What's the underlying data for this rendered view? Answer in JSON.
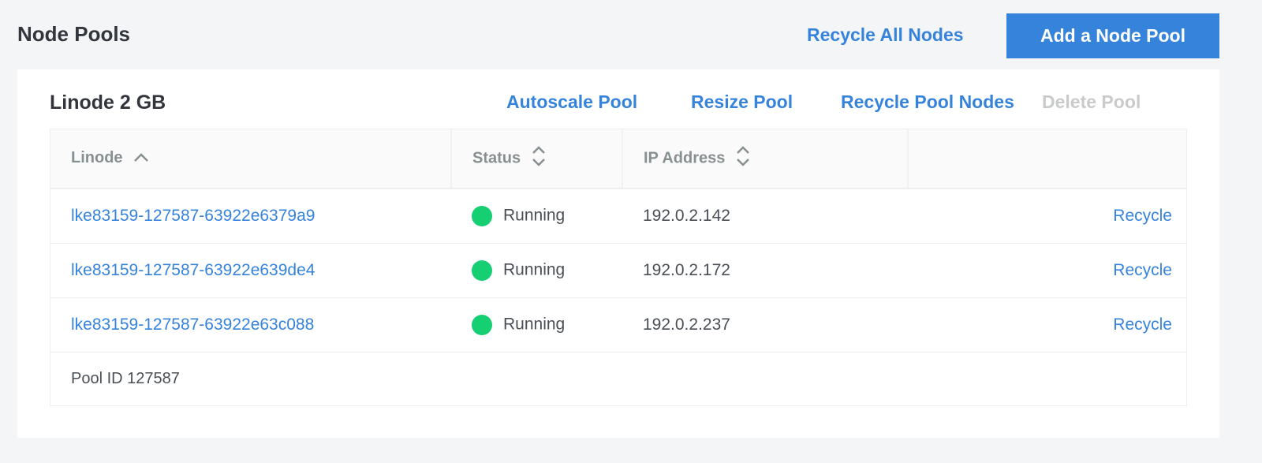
{
  "header": {
    "title": "Node Pools",
    "recycle_all_label": "Recycle All Nodes",
    "add_pool_label": "Add a Node Pool"
  },
  "pool": {
    "title": "Linode 2 GB",
    "actions": {
      "autoscale": "Autoscale Pool",
      "resize": "Resize Pool",
      "recycle_nodes": "Recycle Pool Nodes",
      "delete": "Delete Pool"
    },
    "columns": {
      "linode": "Linode",
      "status": "Status",
      "ip": "IP Address"
    },
    "rows": [
      {
        "linode": "lke83159-127587-63922e6379a9",
        "status": "Running",
        "ip": "192.0.2.142",
        "action": "Recycle"
      },
      {
        "linode": "lke83159-127587-63922e639de4",
        "status": "Running",
        "ip": "192.0.2.172",
        "action": "Recycle"
      },
      {
        "linode": "lke83159-127587-63922e63c088",
        "status": "Running",
        "ip": "192.0.2.237",
        "action": "Recycle"
      }
    ],
    "footer": "Pool ID 127587"
  },
  "colors": {
    "accent": "#3683dc",
    "running": "#17cf73",
    "disabled": "#c9cacb"
  },
  "icons": {
    "sort_asc": "chevron-up-icon",
    "sort_both": "sort-chevrons-icon",
    "status": "status-dot-icon"
  }
}
